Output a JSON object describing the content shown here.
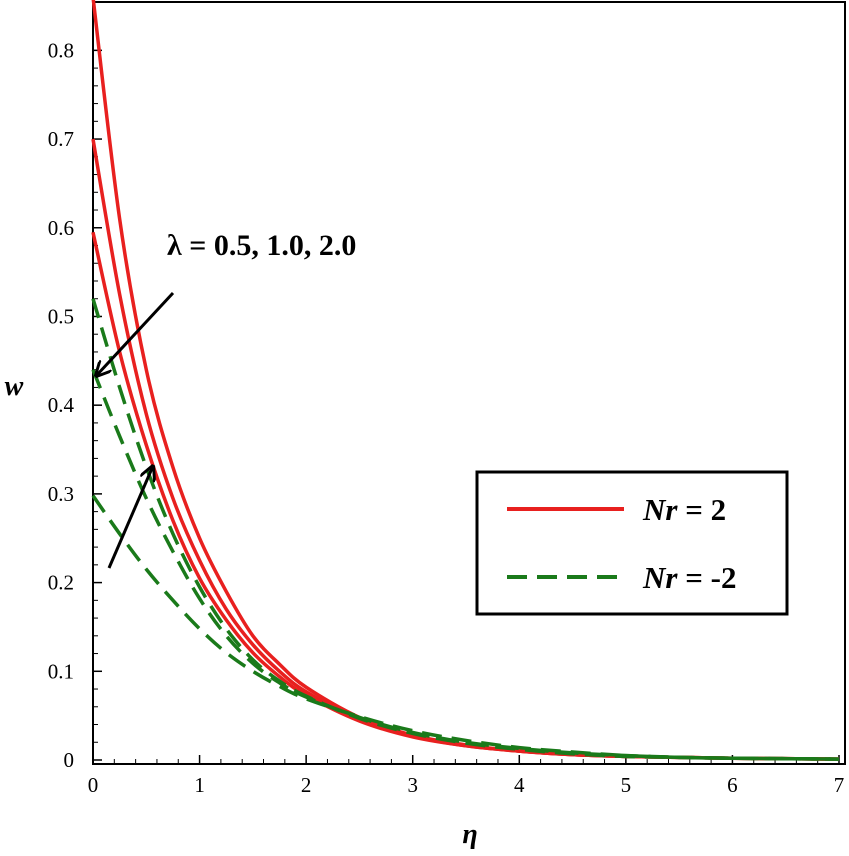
{
  "chart_data": {
    "type": "line",
    "xlabel": "η",
    "ylabel": "w",
    "xlim": [
      0,
      7
    ],
    "ylim": [
      0,
      0.85
    ],
    "xticks": [
      "0",
      "1",
      "2",
      "3",
      "4",
      "5",
      "6",
      "7"
    ],
    "yticks": [
      "0",
      "0.1",
      "0.2",
      "0.3",
      "0.4",
      "0.5",
      "0.6",
      "0.7",
      "0.8"
    ],
    "grid": false,
    "legend_position": "right",
    "annotation": "λ = 0.5, 1.0, 2.0",
    "legend": [
      {
        "label_var": "Nr",
        "label_rest": " = 2",
        "color": "#e8201f",
        "dash": "solid"
      },
      {
        "label_var": "Nr",
        "label_rest": " = -2",
        "color": "#1a7a1a",
        "dash": "dashed"
      }
    ],
    "series": [
      {
        "group": "Nr = 2",
        "color": "#e8201f",
        "dash": "solid",
        "x": [
          0,
          0.25,
          0.5,
          0.75,
          1,
          1.25,
          1.5,
          1.75,
          2,
          2.5,
          3,
          3.5,
          4,
          4.5,
          5,
          5.5,
          6,
          7
        ],
        "y": [
          0.86,
          0.61,
          0.44,
          0.33,
          0.25,
          0.19,
          0.14,
          0.108,
          0.082,
          0.048,
          0.028,
          0.017,
          0.01,
          0.006,
          0.004,
          0.003,
          0.002,
          0.001
        ]
      },
      {
        "group": "Nr = 2",
        "color": "#e8201f",
        "dash": "solid",
        "x": [
          0,
          0.25,
          0.5,
          0.75,
          1,
          1.25,
          1.5,
          1.75,
          2,
          2.5,
          3,
          3.5,
          4,
          4.5,
          5,
          5.5,
          6,
          7
        ],
        "y": [
          0.7,
          0.525,
          0.39,
          0.295,
          0.225,
          0.17,
          0.13,
          0.1,
          0.077,
          0.046,
          0.027,
          0.016,
          0.01,
          0.006,
          0.004,
          0.003,
          0.002,
          0.001
        ]
      },
      {
        "group": "Nr = 2",
        "color": "#e8201f",
        "dash": "solid",
        "x": [
          0,
          0.25,
          0.5,
          0.75,
          1,
          1.25,
          1.5,
          1.75,
          2,
          2.5,
          3,
          3.5,
          4,
          4.5,
          5,
          5.5,
          6,
          7
        ],
        "y": [
          0.595,
          0.46,
          0.355,
          0.27,
          0.205,
          0.158,
          0.121,
          0.094,
          0.073,
          0.044,
          0.026,
          0.016,
          0.01,
          0.006,
          0.004,
          0.003,
          0.002,
          0.001
        ]
      },
      {
        "group": "Nr = -2",
        "color": "#1a7a1a",
        "dash": "dashed",
        "x": [
          0,
          0.25,
          0.5,
          0.75,
          1,
          1.25,
          1.5,
          1.75,
          2,
          2.5,
          3,
          3.5,
          4,
          4.5,
          5,
          5.5,
          6,
          7
        ],
        "y": [
          0.52,
          0.42,
          0.33,
          0.255,
          0.195,
          0.148,
          0.113,
          0.089,
          0.072,
          0.047,
          0.03,
          0.019,
          0.012,
          0.007,
          0.004,
          0.003,
          0.002,
          0.001
        ]
      },
      {
        "group": "Nr = -2",
        "color": "#1a7a1a",
        "dash": "dashed",
        "x": [
          0,
          0.25,
          0.5,
          0.75,
          1,
          1.25,
          1.5,
          1.75,
          2,
          2.5,
          3,
          3.5,
          4,
          4.5,
          5,
          5.5,
          6,
          7
        ],
        "y": [
          0.44,
          0.365,
          0.295,
          0.235,
          0.182,
          0.14,
          0.109,
          0.087,
          0.071,
          0.048,
          0.031,
          0.02,
          0.013,
          0.008,
          0.005,
          0.003,
          0.002,
          0.001
        ]
      },
      {
        "group": "Nr = -2",
        "color": "#1a7a1a",
        "dash": "dashed",
        "x": [
          0,
          0.25,
          0.5,
          0.75,
          1,
          1.25,
          1.5,
          1.75,
          2,
          2.5,
          3,
          3.5,
          4,
          4.5,
          5,
          5.5,
          6,
          7
        ],
        "y": [
          0.298,
          0.255,
          0.215,
          0.18,
          0.148,
          0.121,
          0.1,
          0.083,
          0.069,
          0.049,
          0.033,
          0.022,
          0.014,
          0.009,
          0.005,
          0.003,
          0.002,
          0.001
        ]
      }
    ]
  }
}
